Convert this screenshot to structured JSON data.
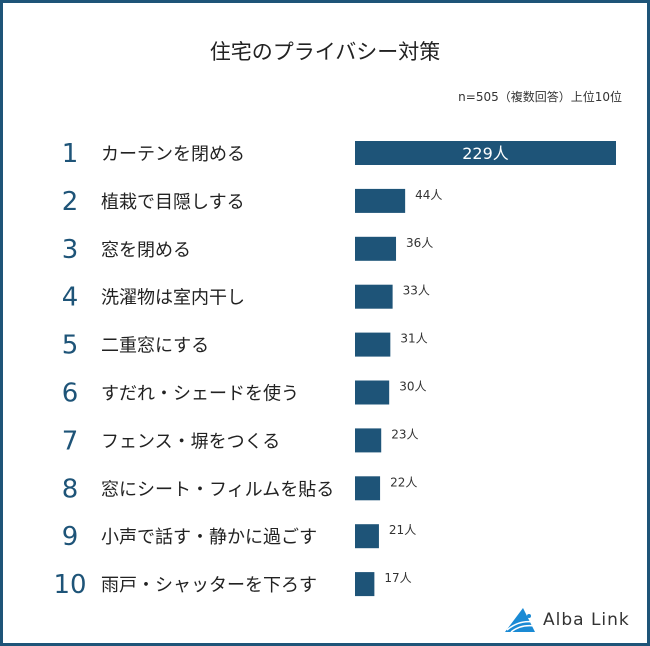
{
  "chart_data": {
    "type": "bar",
    "orientation": "horizontal",
    "title": "住宅のプライバシー対策",
    "note": "n=505（複数回答）上位10位",
    "ranks": [
      "1",
      "2",
      "3",
      "4",
      "5",
      "6",
      "7",
      "8",
      "9",
      "10"
    ],
    "categories": [
      "カーテンを閉める",
      "植栽で目隠しする",
      "窓を閉める",
      "洗濯物は室内干し",
      "二重窓にする",
      "すだれ・シェードを使う",
      "フェンス・塀をつくる",
      "窓にシート・フィルムを貼る",
      "小声で話す・静かに過ごす",
      "雨戸・シャッターを下ろす"
    ],
    "values": [
      229,
      44,
      36,
      33,
      31,
      30,
      23,
      22,
      21,
      17
    ],
    "unit": "人",
    "bar_color": "#1e5478",
    "rank_color": "#1e5478"
  },
  "logo": {
    "text": "Alba Link"
  }
}
